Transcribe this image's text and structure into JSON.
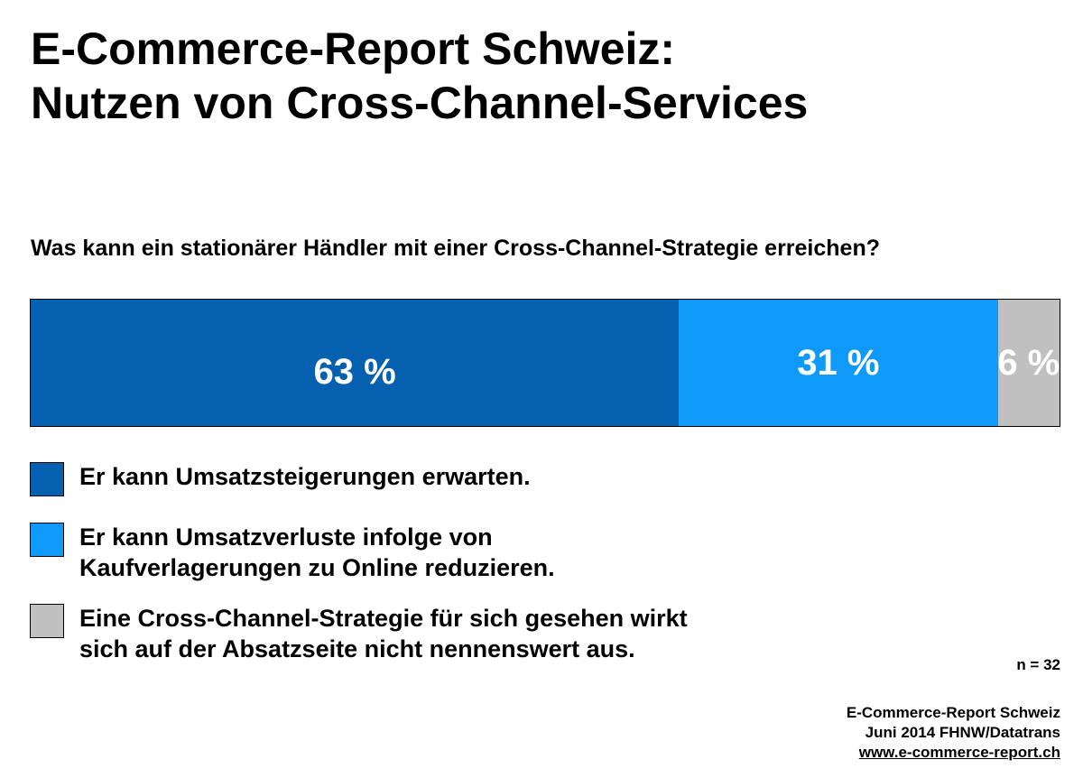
{
  "title_line1": "E-Commerce-Report Schweiz:",
  "title_line2": "Nutzen von Cross-Channel-Services",
  "chart_data": {
    "type": "bar",
    "orientation": "horizontal-stacked-100",
    "title": "Was kann ein stationärer Händler mit einer Cross-Channel-Strategie erreichen?",
    "categories": [
      ""
    ],
    "series": [
      {
        "name": "Er kann Umsatzsteigerungen erwarten.",
        "values": [
          63
        ],
        "label": "63 %",
        "color": "#0561b0"
      },
      {
        "name": "Er kann Umsatzverluste infolge von Kaufverlagerungen zu Online reduzieren.",
        "values": [
          31
        ],
        "label": "31 %",
        "color": "#0f99f8"
      },
      {
        "name": "Eine Cross-Channel-Strategie für sich gesehen wirkt sich auf der Absatzseite nicht nennenswert aus.",
        "values": [
          6
        ],
        "label": "6 %",
        "color": "#c0c0c0"
      }
    ],
    "xlim": [
      0,
      100
    ],
    "legend_position": "bottom-left",
    "grid": false
  },
  "legend": [
    {
      "line1": "Er kann Umsatzsteigerungen erwarten.",
      "line2": ""
    },
    {
      "line1": "Er kann Umsatzverluste infolge von",
      "line2": "Kaufverlagerungen zu Online reduzieren."
    },
    {
      "line1": "Eine Cross-Channel-Strategie für sich gesehen wirkt",
      "line2": "sich auf der Absatzseite nicht nennenswert aus."
    }
  ],
  "sample_size": "n = 32",
  "footer": {
    "line1": "E-Commerce-Report Schweiz",
    "line2": "Juni 2014 FHNW/Datatrans",
    "url": "www.e-commerce-report.ch"
  }
}
